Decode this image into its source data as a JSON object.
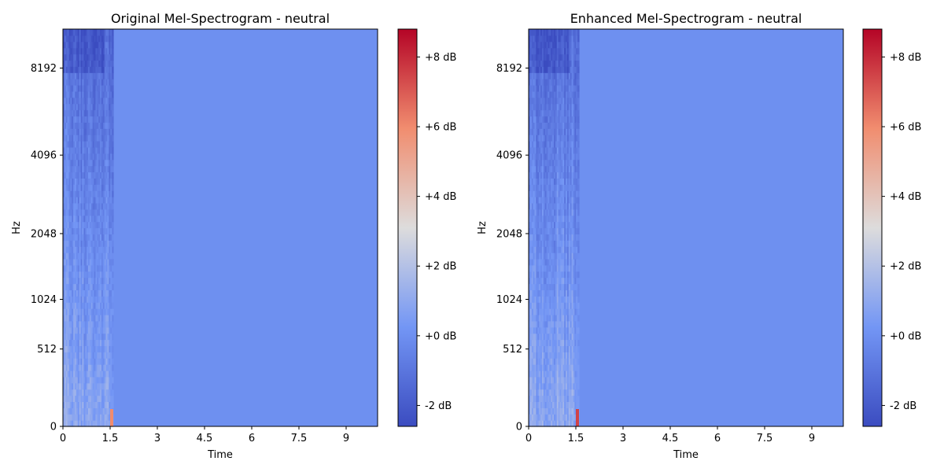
{
  "chart_data": [
    {
      "type": "heatmap",
      "title": "Original Mel-Spectrogram - neutral",
      "xlabel": "Time",
      "ylabel": "Hz",
      "xlim": [
        0,
        10.0
      ],
      "x_ticks": [
        0,
        1.5,
        3,
        4.5,
        6,
        7.5,
        9
      ],
      "x_tick_labels": [
        "0",
        "1.5",
        "3",
        "4.5",
        "6",
        "7.5",
        "9"
      ],
      "y_scale": "mel",
      "y_ticks": [
        0,
        512,
        1024,
        2048,
        4096,
        8192
      ],
      "y_tick_labels": [
        "0",
        "512",
        "1024",
        "2048",
        "4096",
        "8192"
      ],
      "colorbar": {
        "colormap": "coolwarm",
        "range_db": [
          -2.6,
          8.8
        ],
        "ticks": [
          -2,
          0,
          2,
          4,
          6,
          8
        ],
        "tick_labels": [
          "-2 dB",
          "+0 dB",
          "+2 dB",
          "+4 dB",
          "+6 dB",
          "+8 dB"
        ]
      },
      "signal_end_time": 1.6,
      "silence_value_db": 0.0,
      "peak_value_db": 6.0,
      "peak_location": {
        "time": 1.55,
        "freq_hz": 0
      }
    },
    {
      "type": "heatmap",
      "title": "Enhanced Mel-Spectrogram - neutral",
      "xlabel": "Time",
      "ylabel": "Hz",
      "xlim": [
        0,
        10.0
      ],
      "x_ticks": [
        0,
        1.5,
        3,
        4.5,
        6,
        7.5,
        9
      ],
      "x_tick_labels": [
        "0",
        "1.5",
        "3",
        "4.5",
        "6",
        "7.5",
        "9"
      ],
      "y_scale": "mel",
      "y_ticks": [
        0,
        512,
        1024,
        2048,
        4096,
        8192
      ],
      "y_tick_labels": [
        "0",
        "512",
        "1024",
        "2048",
        "4096",
        "8192"
      ],
      "colorbar": {
        "colormap": "coolwarm",
        "range_db": [
          -2.6,
          8.8
        ],
        "ticks": [
          -2,
          0,
          2,
          4,
          6,
          8
        ],
        "tick_labels": [
          "-2 dB",
          "+0 dB",
          "+2 dB",
          "+4 dB",
          "+6 dB",
          "+8 dB"
        ]
      },
      "signal_end_time": 1.6,
      "silence_value_db": 0.0,
      "peak_value_db": 7.5,
      "peak_location": {
        "time": 1.55,
        "freq_hz": 0
      }
    }
  ]
}
